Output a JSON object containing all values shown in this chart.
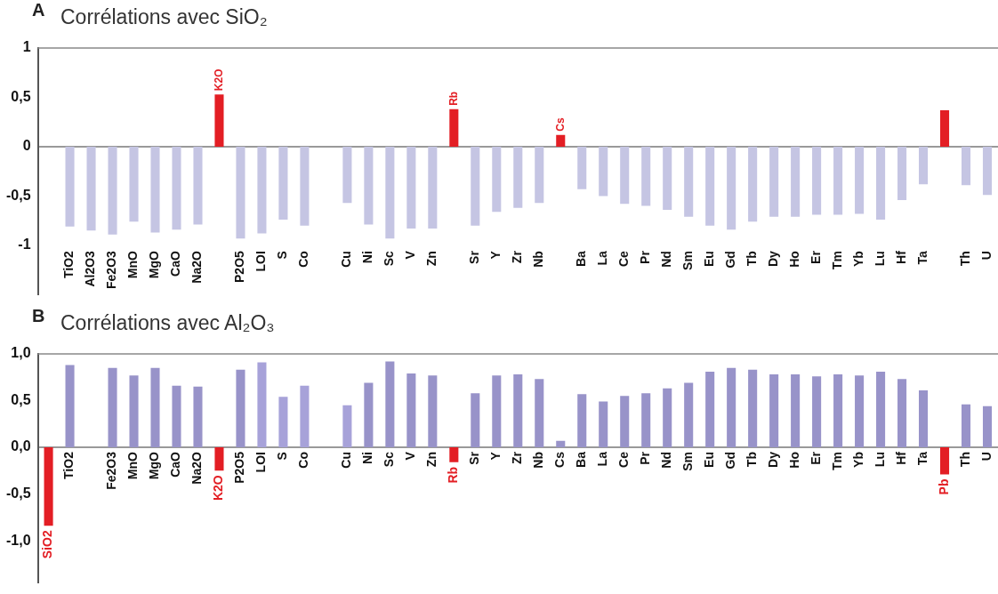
{
  "chart_data": [
    {
      "type": "bar",
      "title": "Corrélations avec SiO₂",
      "annotations": [
        "A"
      ],
      "categories": [
        null,
        "TiO2",
        "Al2O3",
        "Fe2O3",
        "MnO",
        "MgO",
        "CaO",
        "Na2O",
        "K2O",
        "P2O5",
        "LOI",
        "S",
        "Co",
        null,
        "Cu",
        "Ni",
        "Sc",
        "V",
        "Zn",
        "Rb",
        "Sr",
        "Y",
        "Zr",
        "Nb",
        "Cs",
        "Ba",
        "La",
        "Ce",
        "Pr",
        "Nd",
        "Sm",
        "Eu",
        "Gd",
        "Tb",
        "Dy",
        "Ho",
        "Er",
        "Tm",
        "Yb",
        "Lu",
        "Hf",
        "Ta",
        null,
        "Th",
        "U"
      ],
      "values": [
        null,
        -0.81,
        -0.85,
        -0.89,
        -0.76,
        -0.87,
        -0.84,
        -0.79,
        0.53,
        -0.93,
        -0.88,
        -0.74,
        -0.8,
        null,
        -0.57,
        -0.79,
        -0.93,
        -0.83,
        -0.83,
        0.38,
        -0.8,
        -0.66,
        -0.62,
        -0.57,
        0.12,
        -0.43,
        -0.5,
        -0.58,
        -0.6,
        -0.64,
        -0.71,
        -0.8,
        -0.84,
        -0.76,
        -0.71,
        -0.71,
        -0.69,
        -0.69,
        -0.68,
        -0.74,
        -0.54,
        -0.38,
        0.37,
        -0.39,
        -0.49
      ],
      "colors": [
        "#c5c5e3",
        "#c5c5e3",
        "#c5c5e3",
        "#c5c5e3",
        "#c5c5e3",
        "#c5c5e3",
        "#c5c5e3",
        "#c5c5e3",
        "#e31e24",
        "#c5c5e3",
        "#c5c5e3",
        "#c5c5e3",
        "#c5c5e3",
        "#c5c5e3",
        "#c5c5e3",
        "#c5c5e3",
        "#c5c5e3",
        "#c5c5e3",
        "#c5c5e3",
        "#e31e24",
        "#c5c5e3",
        "#c5c5e3",
        "#c5c5e3",
        "#c5c5e3",
        "#e31e24",
        "#c5c5e3",
        "#c5c5e3",
        "#c5c5e3",
        "#c5c5e3",
        "#c5c5e3",
        "#c5c5e3",
        "#c5c5e3",
        "#c5c5e3",
        "#c5c5e3",
        "#c5c5e3",
        "#c5c5e3",
        "#c5c5e3",
        "#c5c5e3",
        "#c5c5e3",
        "#c5c5e3",
        "#c5c5e3",
        "#c5c5e3",
        "#e31e24",
        "#c5c5e3",
        "#c5c5e3"
      ],
      "ylim": [
        -1.5,
        1
      ],
      "yticks": [
        1,
        {
          "value": 0.5,
          "label": "0,5"
        },
        0,
        {
          "value": -0.5,
          "label": "-0,5"
        },
        -1
      ]
    },
    {
      "type": "bar",
      "title": "Corrélations avec Al₂O₃",
      "annotations": [
        "B"
      ],
      "categories": [
        "SiO2",
        "TiO2",
        null,
        "Fe2O3",
        "MnO",
        "MgO",
        "CaO",
        "Na2O",
        "K2O",
        "P2O5",
        "LOI",
        "S",
        "Co",
        null,
        "Cu",
        "Ni",
        "Sc",
        "V",
        "Zn",
        "Rb",
        "Sr",
        "Y",
        "Zr",
        "Nb",
        "Cs",
        "Ba",
        "La",
        "Ce",
        "Pr",
        "Nd",
        "Sm",
        "Eu",
        "Gd",
        "Tb",
        "Dy",
        "Ho",
        "Er",
        "Tm",
        "Yb",
        "Lu",
        "Hf",
        "Ta",
        "Pb",
        "Th",
        "U"
      ],
      "values": [
        -0.84,
        0.88,
        null,
        0.85,
        0.77,
        0.85,
        0.66,
        0.65,
        -0.25,
        0.83,
        0.91,
        0.54,
        0.66,
        null,
        0.45,
        0.69,
        0.92,
        0.79,
        0.77,
        -0.16,
        0.58,
        0.77,
        0.78,
        0.73,
        0.07,
        0.57,
        0.49,
        0.55,
        0.58,
        0.63,
        0.69,
        0.81,
        0.85,
        0.83,
        0.78,
        0.78,
        0.76,
        0.78,
        0.77,
        0.81,
        0.73,
        0.61,
        -0.29,
        0.46,
        0.44
      ],
      "colors": [
        "#e31e24",
        "#9893c9",
        "#9893c9",
        "#9893c9",
        "#9893c9",
        "#9893c9",
        "#9893c9",
        "#9893c9",
        "#e31e24",
        "#9893c9",
        "#a7a2d9",
        "#a7a2d9",
        "#a7a2d9",
        "#9893c9",
        "#a7a2d9",
        "#9893c9",
        "#9893c9",
        "#9893c9",
        "#9893c9",
        "#e31e24",
        "#9893c9",
        "#9893c9",
        "#9893c9",
        "#9893c9",
        "#9893c9",
        "#9893c9",
        "#9893c9",
        "#9893c9",
        "#9893c9",
        "#9893c9",
        "#9893c9",
        "#9893c9",
        "#9893c9",
        "#9893c9",
        "#9893c9",
        "#9893c9",
        "#9893c9",
        "#9893c9",
        "#9893c9",
        "#9893c9",
        "#9893c9",
        "#9893c9",
        "#e31e24",
        "#9893c9",
        "#9893c9"
      ],
      "ylim": [
        -1.45,
        1
      ],
      "yticks": [
        {
          "value": 1,
          "label": "1,0"
        },
        {
          "value": 0.5,
          "label": "0,5"
        },
        {
          "value": 0,
          "label": "0,0"
        },
        {
          "value": -0.5,
          "label": "-0,5"
        },
        {
          "value": -1,
          "label": "-1,0"
        }
      ]
    }
  ]
}
